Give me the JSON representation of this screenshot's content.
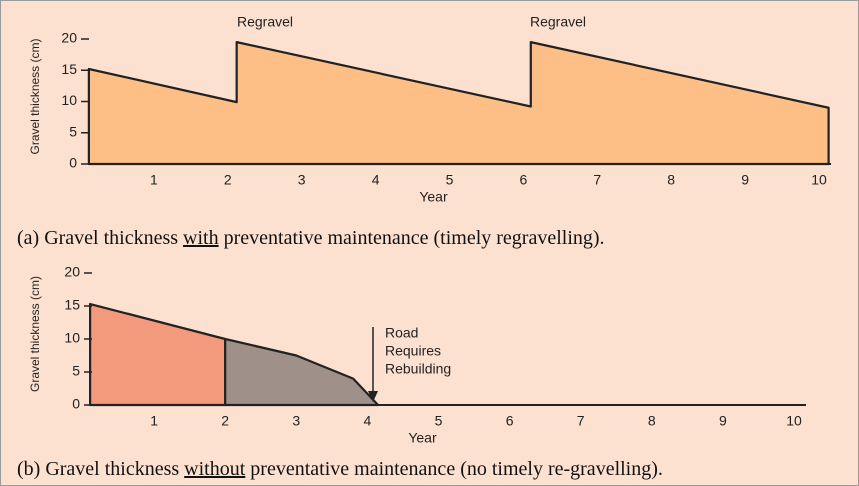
{
  "chart_data": [
    {
      "type": "area",
      "ylabel": "Gravel thickness (cm)",
      "xlabel": "Year",
      "xlim": [
        0,
        10
      ],
      "xticks": [
        1,
        2,
        3,
        4,
        5,
        6,
        7,
        8,
        9,
        10
      ],
      "ylim": [
        0,
        20
      ],
      "yticks": [
        0,
        5,
        10,
        15,
        20
      ],
      "series": [
        {
          "color": "#fdbf85",
          "x": [
            0.12,
            2.12,
            2.12,
            6.1,
            6.1,
            10.13
          ],
          "values": [
            15.2,
            9.9,
            19.5,
            9.2,
            19.5,
            9
          ]
        }
      ],
      "annotations": [
        "Regravel",
        "Regravel"
      ],
      "caption": [
        "(a) Gravel thickness ",
        "with",
        " preventative maintenance (timely regravelling)."
      ]
    },
    {
      "type": "area",
      "ylabel": "Gravel thickness (cm)",
      "xlabel": "Year",
      "xlim": [
        0,
        10
      ],
      "xticks": [
        1,
        2,
        3,
        4,
        5,
        6,
        7,
        8,
        9,
        10
      ],
      "ylim": [
        0,
        20
      ],
      "yticks": [
        0,
        5,
        10,
        15,
        20
      ],
      "series": [
        {
          "color": "#f39a7c",
          "x": [
            0.1,
            2
          ],
          "values": [
            15.3,
            10
          ]
        },
        {
          "color": "#a0908a",
          "x": [
            2,
            3,
            3.8,
            4.15
          ],
          "values": [
            10,
            7.5,
            4,
            0
          ]
        }
      ],
      "annotations": [
        "Road",
        "Requires",
        "Rebuilding"
      ],
      "caption": [
        "(b) Gravel thickness ",
        "without",
        " preventative maintenance (no timely re-gravelling)."
      ]
    }
  ]
}
